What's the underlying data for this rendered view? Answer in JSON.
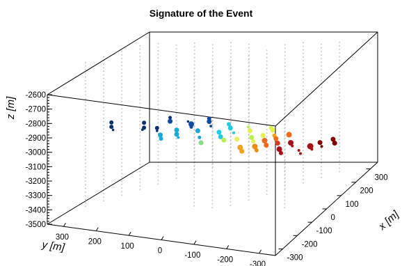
{
  "chart_data": {
    "type": "scatter3d",
    "title": "Signature of the Event",
    "xlabel": "x [m]",
    "ylabel": "y [m]",
    "zlabel": "z [m]",
    "xlim": [
      -350,
      350
    ],
    "ylim": [
      -350,
      350
    ],
    "zlim": [
      -3500,
      -2600
    ],
    "x_ticks": [
      "-300",
      "-200",
      "-100",
      "0",
      "100",
      "200",
      "300"
    ],
    "y_ticks": [
      "300",
      "200",
      "100",
      "0",
      "-100",
      "-200",
      "-300"
    ],
    "z_ticks": [
      "-2600",
      "-2700",
      "-2800",
      "-2900",
      "-3000",
      "-3100",
      "-3200",
      "-3300",
      "-3400",
      "-3500"
    ],
    "hits": [
      {
        "x": 0,
        "y": 310,
        "z": -3105,
        "size": 3,
        "color": "#08306b"
      },
      {
        "x": 0,
        "y": 310,
        "z": -3135,
        "size": 3,
        "color": "#08306b"
      },
      {
        "x": 0,
        "y": 305,
        "z": -3155,
        "size": 1.8,
        "color": "#08306b"
      },
      {
        "x": 0,
        "y": 210,
        "z": -3075,
        "size": 3,
        "color": "#08306b"
      },
      {
        "x": 0,
        "y": 210,
        "z": -3110,
        "size": 3,
        "color": "#08306b"
      },
      {
        "x": 0,
        "y": 215,
        "z": -3125,
        "size": 1.8,
        "color": "#08306b"
      },
      {
        "x": 0,
        "y": 170,
        "z": -3100,
        "size": 3,
        "color": "#08306b"
      },
      {
        "x": 0,
        "y": 170,
        "z": -3120,
        "size": 1.8,
        "color": "#08306b"
      },
      {
        "x": 0,
        "y": 160,
        "z": -3145,
        "size": 3.5,
        "color": "#1aa7d8"
      },
      {
        "x": 0,
        "y": 158,
        "z": -3170,
        "size": 3,
        "color": "#1aa7d8"
      },
      {
        "x": 0,
        "y": 130,
        "z": -3015,
        "size": 2.5,
        "color": "#08306b"
      },
      {
        "x": 0,
        "y": 130,
        "z": -3040,
        "size": 3.5,
        "color": "#0b4da2"
      },
      {
        "x": 0,
        "y": 110,
        "z": -3095,
        "size": 3.5,
        "color": "#1aa7d8"
      },
      {
        "x": 0,
        "y": 110,
        "z": -3125,
        "size": 3.5,
        "color": "#1aa7d8"
      },
      {
        "x": 0,
        "y": 105,
        "z": -3145,
        "size": 2,
        "color": "#1aa7d8"
      },
      {
        "x": 0,
        "y": 75,
        "z": -3025,
        "size": 1.8,
        "color": "#08306b"
      },
      {
        "x": 0,
        "y": 65,
        "z": -3040,
        "size": 4,
        "color": "#0b4da2"
      },
      {
        "x": 0,
        "y": 65,
        "z": -3060,
        "size": 2.5,
        "color": "#0b4da2"
      },
      {
        "x": 0,
        "y": 45,
        "z": -3080,
        "size": 3.5,
        "color": "#1aa7d8"
      },
      {
        "x": 0,
        "y": 40,
        "z": -3125,
        "size": 2.5,
        "color": "#1aa7d8"
      },
      {
        "x": 0,
        "y": 35,
        "z": -3160,
        "size": 3.5,
        "color": "#7fe07f"
      },
      {
        "x": 0,
        "y": 10,
        "z": -2985,
        "size": 3,
        "color": "#0b4da2"
      },
      {
        "x": 0,
        "y": 10,
        "z": -3005,
        "size": 3.5,
        "color": "#0b4da2"
      },
      {
        "x": 0,
        "y": 5,
        "z": -3035,
        "size": 2,
        "color": "#0b4da2"
      },
      {
        "x": 0,
        "y": -20,
        "z": -3070,
        "size": 3.5,
        "color": "#1ecbe1"
      },
      {
        "x": 0,
        "y": -25,
        "z": -3100,
        "size": 3.5,
        "color": "#1ecbe1"
      },
      {
        "x": 0,
        "y": -35,
        "z": -3120,
        "size": 3.5,
        "color": "#b8f04a"
      },
      {
        "x": 0,
        "y": -50,
        "z": -3005,
        "size": 3,
        "color": "#1ecbe1"
      },
      {
        "x": 0,
        "y": -55,
        "z": -3030,
        "size": 3.5,
        "color": "#1ecbe1"
      },
      {
        "x": 0,
        "y": -65,
        "z": -3060,
        "size": 2,
        "color": "#1ecbe1"
      },
      {
        "x": 0,
        "y": -75,
        "z": -3100,
        "size": 3.5,
        "color": "#e6f050"
      },
      {
        "x": 0,
        "y": -85,
        "z": -3155,
        "size": 4,
        "color": "#f5a21b"
      },
      {
        "x": 0,
        "y": -90,
        "z": -3180,
        "size": 3.5,
        "color": "#f5a21b"
      },
      {
        "x": 0,
        "y": -110,
        "z": -3005,
        "size": 2,
        "color": "#b8f04a"
      },
      {
        "x": 0,
        "y": -115,
        "z": -3030,
        "size": 3.5,
        "color": "#e6f050"
      },
      {
        "x": 0,
        "y": -120,
        "z": -3075,
        "size": 3.5,
        "color": "#b8f04a"
      },
      {
        "x": 0,
        "y": -125,
        "z": -3100,
        "size": 3,
        "color": "#e6f050"
      },
      {
        "x": 0,
        "y": -130,
        "z": -3135,
        "size": 4,
        "color": "#f08a10"
      },
      {
        "x": 0,
        "y": -135,
        "z": -3160,
        "size": 3,
        "color": "#f08a10"
      },
      {
        "x": 0,
        "y": -155,
        "z": -3050,
        "size": 3.5,
        "color": "#e6f050"
      },
      {
        "x": 0,
        "y": -160,
        "z": -3085,
        "size": 4,
        "color": "#f06a1a"
      },
      {
        "x": 0,
        "y": -165,
        "z": -3115,
        "size": 3.5,
        "color": "#f06a1a"
      },
      {
        "x": 0,
        "y": -180,
        "z": -2990,
        "size": 3,
        "color": "#e6f050"
      },
      {
        "x": 0,
        "y": -185,
        "z": -3005,
        "size": 3.5,
        "color": "#e6f050"
      },
      {
        "x": 0,
        "y": -190,
        "z": -3040,
        "size": 3,
        "color": "#f5a21b"
      },
      {
        "x": 0,
        "y": -195,
        "z": -3060,
        "size": 3.5,
        "color": "#f06a1a"
      },
      {
        "x": 0,
        "y": -200,
        "z": -3090,
        "size": 3.5,
        "color": "#d9381e"
      },
      {
        "x": 0,
        "y": -205,
        "z": -3130,
        "size": 4,
        "color": "#a50f15"
      },
      {
        "x": 0,
        "y": -210,
        "z": -3155,
        "size": 3,
        "color": "#a50f15"
      },
      {
        "x": 0,
        "y": -235,
        "z": -3020,
        "size": 4,
        "color": "#f06a1a"
      },
      {
        "x": 0,
        "y": -240,
        "z": -3075,
        "size": 4,
        "color": "#a50f15"
      },
      {
        "x": 0,
        "y": -245,
        "z": -3095,
        "size": 2,
        "color": "#a50f15"
      },
      {
        "x": 0,
        "y": -265,
        "z": -3120,
        "size": 2,
        "color": "#a50f15"
      },
      {
        "x": 0,
        "y": -270,
        "z": -3140,
        "size": 2,
        "color": "#a50f15"
      },
      {
        "x": 0,
        "y": -300,
        "z": -3080,
        "size": 4.5,
        "color": "#a50f15"
      },
      {
        "x": 0,
        "y": -305,
        "z": -3100,
        "size": 2,
        "color": "#a50f15"
      },
      {
        "x": 0,
        "y": -330,
        "z": -3045,
        "size": 3.5,
        "color": "#800000"
      },
      {
        "x": 0,
        "y": -335,
        "z": -3070,
        "size": 2,
        "color": "#800000"
      },
      {
        "x": 0,
        "y": -370,
        "z": -3010,
        "size": 3.5,
        "color": "#800000"
      },
      {
        "x": 0,
        "y": -375,
        "z": -3035,
        "size": 3.5,
        "color": "#800000"
      }
    ],
    "grid": "off",
    "background_strings": {
      "color": "#c8c8c8",
      "columns": 20,
      "z_top": -2500,
      "z_bottom": -3500
    }
  }
}
